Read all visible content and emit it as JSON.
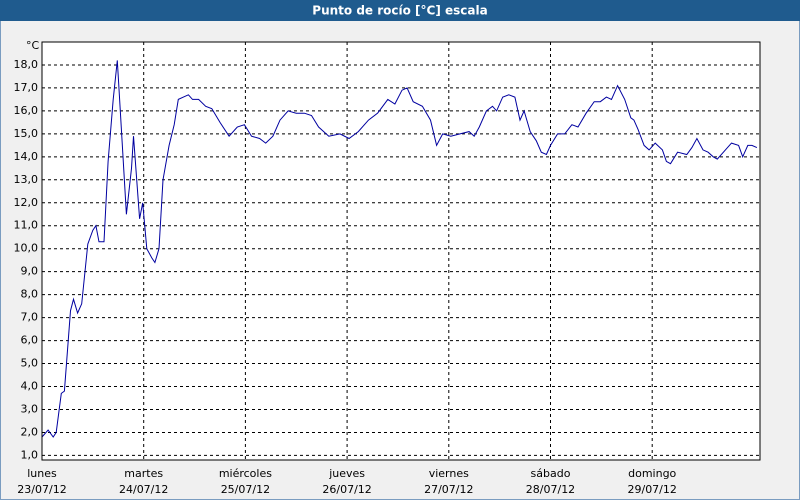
{
  "chart_data": {
    "type": "line",
    "title": "Punto de rocío [°C] escala",
    "y_label": "°C",
    "x": [
      0,
      0.06,
      0.11,
      0.14,
      0.19,
      0.22,
      0.28,
      0.31,
      0.35,
      0.39,
      0.45,
      0.5,
      0.53,
      0.56,
      0.61,
      0.65,
      0.7,
      0.74,
      0.77,
      0.83,
      0.88,
      0.9,
      0.96,
      0.99,
      1.03,
      1.08,
      1.11,
      1.15,
      1.19,
      1.25,
      1.3,
      1.34,
      1.39,
      1.44,
      1.48,
      1.54,
      1.61,
      1.67,
      1.75,
      1.84,
      1.92,
      1.99,
      2.06,
      2.14,
      2.2,
      2.27,
      2.34,
      2.42,
      2.5,
      2.58,
      2.65,
      2.72,
      2.82,
      2.93,
      3.02,
      3.11,
      3.21,
      3.3,
      3.4,
      3.47,
      3.54,
      3.59,
      3.65,
      3.74,
      3.82,
      3.88,
      3.94,
      4.02,
      4.11,
      4.2,
      4.25,
      4.3,
      4.37,
      4.43,
      4.47,
      4.53,
      4.59,
      4.65,
      4.7,
      4.74,
      4.8,
      4.86,
      4.91,
      4.96,
      5.0,
      5.07,
      5.14,
      5.21,
      5.27,
      5.35,
      5.43,
      5.49,
      5.55,
      5.6,
      5.66,
      5.73,
      5.79,
      5.82,
      5.86,
      5.92,
      5.97,
      6.03,
      6.1,
      6.14,
      6.18,
      6.25,
      6.34,
      6.39,
      6.44,
      6.5,
      6.55,
      6.6,
      6.64,
      6.72,
      6.78,
      6.85,
      6.89,
      6.94,
      6.98,
      7.03
    ],
    "series": [
      {
        "name": "Punto de rocío",
        "color": "#0000a0",
        "values": [
          1.8,
          2.1,
          1.8,
          2.0,
          3.7,
          3.8,
          7.3,
          7.8,
          7.2,
          7.6,
          10.2,
          10.8,
          11.0,
          10.3,
          10.3,
          13.8,
          16.5,
          18.2,
          16.0,
          11.5,
          13.5,
          14.9,
          11.3,
          12.0,
          10.0,
          9.6,
          9.4,
          10.0,
          13.0,
          14.5,
          15.4,
          16.5,
          16.6,
          16.7,
          16.5,
          16.5,
          16.2,
          16.1,
          15.5,
          14.9,
          15.3,
          15.4,
          14.9,
          14.8,
          14.6,
          14.9,
          15.6,
          16.0,
          15.9,
          15.9,
          15.8,
          15.3,
          14.9,
          15.0,
          14.8,
          15.1,
          15.6,
          15.9,
          16.5,
          16.3,
          16.9,
          17.0,
          16.4,
          16.2,
          15.6,
          14.5,
          15.0,
          14.9,
          15.0,
          15.1,
          14.9,
          15.3,
          16.0,
          16.2,
          16.0,
          16.6,
          16.7,
          16.6,
          15.6,
          16.0,
          15.1,
          14.7,
          14.2,
          14.1,
          14.5,
          15.0,
          15.0,
          15.4,
          15.3,
          15.9,
          16.4,
          16.4,
          16.6,
          16.5,
          17.1,
          16.5,
          15.7,
          15.6,
          15.2,
          14.5,
          14.3,
          14.6,
          14.3,
          13.8,
          13.7,
          14.2,
          14.1,
          14.4,
          14.8,
          14.3,
          14.2,
          14.0,
          13.9,
          14.3,
          14.6,
          14.5,
          14.0,
          14.5,
          14.5,
          14.4
        ]
      }
    ],
    "xlim": [
      0,
      7.06
    ],
    "xticks": [
      0,
      1,
      2,
      3,
      4,
      5,
      6
    ],
    "xtick_days": [
      "lunes",
      "martes",
      "miércoles",
      "jueves",
      "viernes",
      "sábado",
      "domingo"
    ],
    "xtick_dates": [
      "23/07/12",
      "24/07/12",
      "25/07/12",
      "26/07/12",
      "27/07/12",
      "28/07/12",
      "29/07/12"
    ],
    "ylim": [
      0.8,
      19
    ],
    "yticks": [
      {
        "value": 1,
        "label": "1,0"
      },
      {
        "value": 2,
        "label": "2,0"
      },
      {
        "value": 3,
        "label": "3,0"
      },
      {
        "value": 4,
        "label": "4,0"
      },
      {
        "value": 5,
        "label": "5,0"
      },
      {
        "value": 6,
        "label": "6,0"
      },
      {
        "value": 7,
        "label": "7,0"
      },
      {
        "value": 8,
        "label": "8,0"
      },
      {
        "value": 9,
        "label": "9,0"
      },
      {
        "value": 10,
        "label": "10,0"
      },
      {
        "value": 11,
        "label": "11,0"
      },
      {
        "value": 12,
        "label": "12,0"
      },
      {
        "value": 13,
        "label": "13,0"
      },
      {
        "value": 14,
        "label": "14,0"
      },
      {
        "value": 15,
        "label": "15,0"
      },
      {
        "value": 16,
        "label": "16,0"
      },
      {
        "value": 17,
        "label": "17,0"
      },
      {
        "value": 18,
        "label": "18,0"
      }
    ],
    "grid": true
  }
}
